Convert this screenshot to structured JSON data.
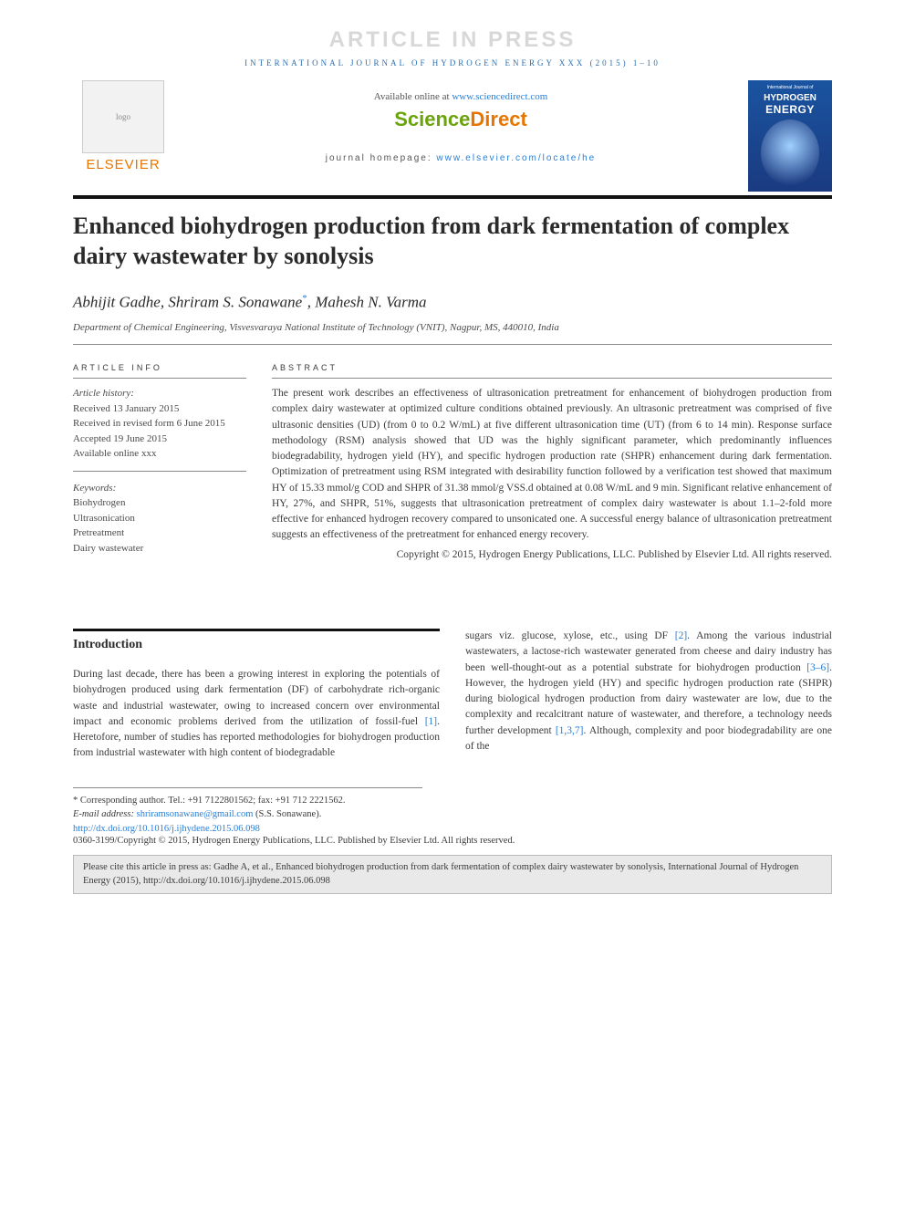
{
  "watermark": "ARTICLE IN PRESS",
  "running_head": "INTERNATIONAL JOURNAL OF HYDROGEN ENERGY XXX (2015) 1–10",
  "header": {
    "publisher_name": "ELSEVIER",
    "avail_prefix": "Available online at ",
    "avail_link": "www.sciencedirect.com",
    "brand_sci": "Science",
    "brand_direct": "Direct",
    "homepage_prefix": "journal homepage: ",
    "homepage_link": "www.elsevier.com/locate/he",
    "cover_top": "International Journal of",
    "cover_h1": "HYDROGEN",
    "cover_h2": "ENERGY"
  },
  "title": "Enhanced biohydrogen production from dark fermentation of complex dairy wastewater by sonolysis",
  "authors_html": "Abhijit Gadhe, Shriram S. Sonawane",
  "authors_suffix": ", Mahesh N. Varma",
  "corr_mark": "*",
  "affiliation": "Department of Chemical Engineering, Visvesvaraya National Institute of Technology (VNIT), Nagpur, MS, 440010, India",
  "meta": {
    "info_heading": "ARTICLE INFO",
    "history_label": "Article history:",
    "received": "Received 13 January 2015",
    "revised": "Received in revised form 6 June 2015",
    "accepted": "Accepted 19 June 2015",
    "online": "Available online xxx",
    "keywords_label": "Keywords:",
    "keywords": [
      "Biohydrogen",
      "Ultrasonication",
      "Pretreatment",
      "Dairy wastewater"
    ]
  },
  "abstract": {
    "heading": "ABSTRACT",
    "text": "The present work describes an effectiveness of ultrasonication pretreatment for enhancement of biohydrogen production from complex dairy wastewater at optimized culture conditions obtained previously. An ultrasonic pretreatment was comprised of five ultrasonic densities (UD) (from 0 to 0.2 W/mL) at five different ultrasonication time (UT) (from 6 to 14 min). Response surface methodology (RSM) analysis showed that UD was the highly significant parameter, which predominantly influences biodegradability, hydrogen yield (HY), and specific hydrogen production rate (SHPR) enhancement during dark fermentation. Optimization of pretreatment using RSM integrated with desirability function followed by a verification test showed that maximum HY of 15.33 mmol/g COD and SHPR of 31.38 mmol/g VSS.d obtained at 0.08 W/mL and 9 min. Significant relative enhancement of HY, 27%, and SHPR, 51%, suggests that ultrasonication pretreatment of complex dairy wastewater is about 1.1–2-fold more effective for enhanced hydrogen recovery compared to unsonicated one. A successful energy balance of ultrasonication pretreatment suggests an effectiveness of the pretreatment for enhanced energy recovery.",
    "copyright": "Copyright © 2015, Hydrogen Energy Publications, LLC. Published by Elsevier Ltd. All rights reserved."
  },
  "body": {
    "intro_heading": "Introduction",
    "col1_a": "During last decade, there has been a growing interest in exploring the potentials of biohydrogen produced using dark fermentation (DF) of carbohydrate rich-organic waste and industrial wastewater, owing to increased concern over environmental impact and economic problems derived from the utilization of fossil-fuel ",
    "ref1": "[1]",
    "col1_b": ". Heretofore, number of studies has reported methodologies for biohydrogen production from industrial wastewater with high content of biodegradable",
    "col2_a": "sugars viz. glucose, xylose, etc., using DF ",
    "ref2": "[2]",
    "col2_b": ". Among the various industrial wastewaters, a lactose-rich wastewater generated from cheese and dairy industry has been well-thought-out as a potential substrate for biohydrogen production ",
    "ref36": "[3–6]",
    "col2_c": ". However, the hydrogen yield (HY) and specific hydrogen production rate (SHPR) during biological hydrogen production from dairy wastewater are low, due to the complexity and recalcitrant nature of wastewater, and therefore, a technology needs further development ",
    "ref137": "[1,3,7]",
    "col2_d": ". Although, complexity and poor biodegradability are one of the"
  },
  "footnotes": {
    "corr_text": "* Corresponding author. Tel.: +91 7122801562; fax: +91 712 2221562.",
    "email_label": "E-mail address: ",
    "email": "shriramsonawane@gmail.com",
    "email_suffix": " (S.S. Sonawane).",
    "doi": "http://dx.doi.org/10.1016/j.ijhydene.2015.06.098",
    "issn": "0360-3199/Copyright © 2015, Hydrogen Energy Publications, LLC. Published by Elsevier Ltd. All rights reserved."
  },
  "cite_box": "Please cite this article in press as: Gadhe A, et al., Enhanced biohydrogen production from dark fermentation of complex dairy wastewater by sonolysis, International Journal of Hydrogen Energy (2015), http://dx.doi.org/10.1016/j.ijhydene.2015.06.098",
  "colors": {
    "link": "#2a7fd4",
    "publisher_orange": "#e87500",
    "sd_green": "#6aa30a",
    "rule_dark": "#111111"
  }
}
